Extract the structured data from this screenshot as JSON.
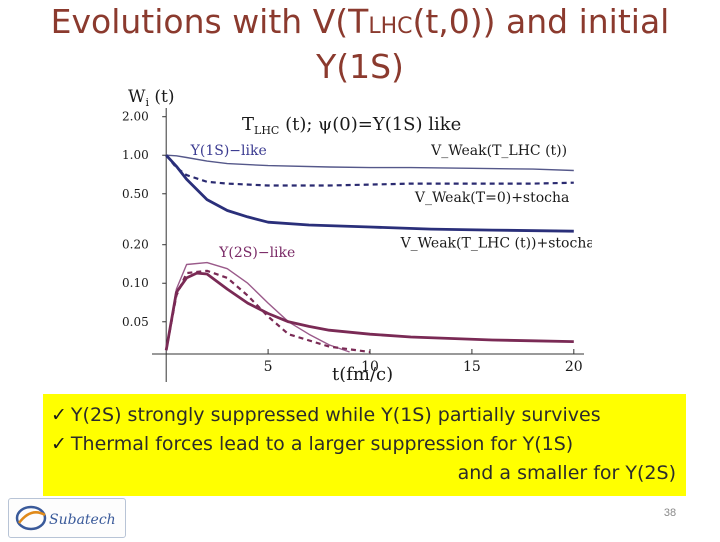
{
  "slide": {
    "title_pre": "Evolutions with V(T",
    "title_sub": "LHC",
    "title_post": "(t,0)) and initial",
    "title_line2": "Y(1S)",
    "bullets": [
      "Y(2S) strongly suppressed while Y(1S) partially survives",
      "Thermal forces lead to a larger suppression for Y(1S)"
    ],
    "bullet_continuation": "and a smaller for Y(2S)",
    "page_number": "38",
    "logo_text": "Subatech"
  },
  "chart_data": {
    "type": "line",
    "title_left": "T",
    "title_sub": "LHC",
    "title_rest": " (t);  ψ(0)=Υ(1S)  like",
    "ylabel": "W",
    "ylabel_sub": "i",
    "ylabel_rest": " (t)",
    "xlabel": "t(fm/c)",
    "xlim": [
      -0.5,
      20.5
    ],
    "ylim": [
      0.028,
      2.1
    ],
    "yscale": "log",
    "x_ticks": [
      5,
      10,
      15,
      20
    ],
    "y_ticks": [
      {
        "value": 2.0,
        "label": "2.00"
      },
      {
        "value": 1.0,
        "label": "1.00"
      },
      {
        "value": 0.5,
        "label": "0.50"
      },
      {
        "value": 0.2,
        "label": "0.20"
      },
      {
        "value": 0.1,
        "label": "0.10"
      },
      {
        "value": 0.05,
        "label": "0.05"
      }
    ],
    "grid": false,
    "annotations": [
      {
        "text": "Υ(1S)−like",
        "color": "#3a3a90",
        "x": 1.2,
        "y": 1.0
      },
      {
        "text": "Υ(2S)−like",
        "color": "#7a2a66",
        "x": 2.6,
        "y": 0.16
      },
      {
        "text": "V_Weak(T_LHC (t))",
        "color": "#1a1a1a",
        "x": 13.0,
        "y": 1.0
      },
      {
        "text": "V_Weak(T=0)+stocha",
        "color": "#1a1a1a",
        "x": 12.2,
        "y": 0.43
      },
      {
        "text": "V_Weak(T_LHC (t))+stocha",
        "color": "#1a1a1a",
        "x": 11.5,
        "y": 0.19
      }
    ],
    "series": [
      {
        "group": "1S",
        "style": "solid-thin",
        "color": "#55588a",
        "x": [
          0,
          0.5,
          1,
          2,
          3,
          5,
          8,
          10,
          12,
          15,
          18,
          20
        ],
        "y": [
          1.0,
          0.99,
          0.96,
          0.9,
          0.86,
          0.83,
          0.81,
          0.8,
          0.8,
          0.79,
          0.78,
          0.76
        ]
      },
      {
        "group": "1S",
        "style": "dashed",
        "color": "#2a2a70",
        "x": [
          0,
          0.5,
          1,
          2,
          3,
          5,
          8,
          10,
          12,
          15,
          18,
          20
        ],
        "y": [
          1.0,
          0.8,
          0.7,
          0.62,
          0.6,
          0.58,
          0.58,
          0.59,
          0.6,
          0.6,
          0.6,
          0.61
        ]
      },
      {
        "group": "1S",
        "style": "solid-thick",
        "color": "#2a2f7a",
        "x": [
          0,
          0.5,
          1,
          2,
          3,
          4,
          5,
          7,
          10,
          13,
          16,
          20
        ],
        "y": [
          1.0,
          0.82,
          0.65,
          0.45,
          0.37,
          0.33,
          0.3,
          0.285,
          0.275,
          0.265,
          0.26,
          0.255
        ]
      },
      {
        "group": "2S",
        "style": "solid-thin",
        "color": "#9a5a8a",
        "x": [
          0,
          0.5,
          1,
          2,
          3,
          4,
          5,
          6,
          7,
          8,
          9
        ],
        "y": [
          0.03,
          0.09,
          0.14,
          0.145,
          0.13,
          0.1,
          0.07,
          0.05,
          0.04,
          0.033,
          0.029
        ]
      },
      {
        "group": "2S",
        "style": "dashed",
        "color": "#7a2a55",
        "x": [
          0,
          0.5,
          1,
          2,
          3,
          4,
          5,
          6,
          8,
          10
        ],
        "y": [
          0.03,
          0.08,
          0.12,
          0.125,
          0.11,
          0.08,
          0.055,
          0.04,
          0.032,
          0.029
        ]
      },
      {
        "group": "2S",
        "style": "solid-thick",
        "color": "#7a2a55",
        "x": [
          0,
          0.5,
          1,
          1.5,
          2,
          3,
          4,
          5,
          6,
          7,
          8,
          10,
          12,
          14,
          16,
          18,
          20
        ],
        "y": [
          0.03,
          0.085,
          0.11,
          0.12,
          0.118,
          0.09,
          0.07,
          0.058,
          0.05,
          0.046,
          0.043,
          0.04,
          0.038,
          0.037,
          0.036,
          0.0355,
          0.035
        ]
      }
    ]
  }
}
